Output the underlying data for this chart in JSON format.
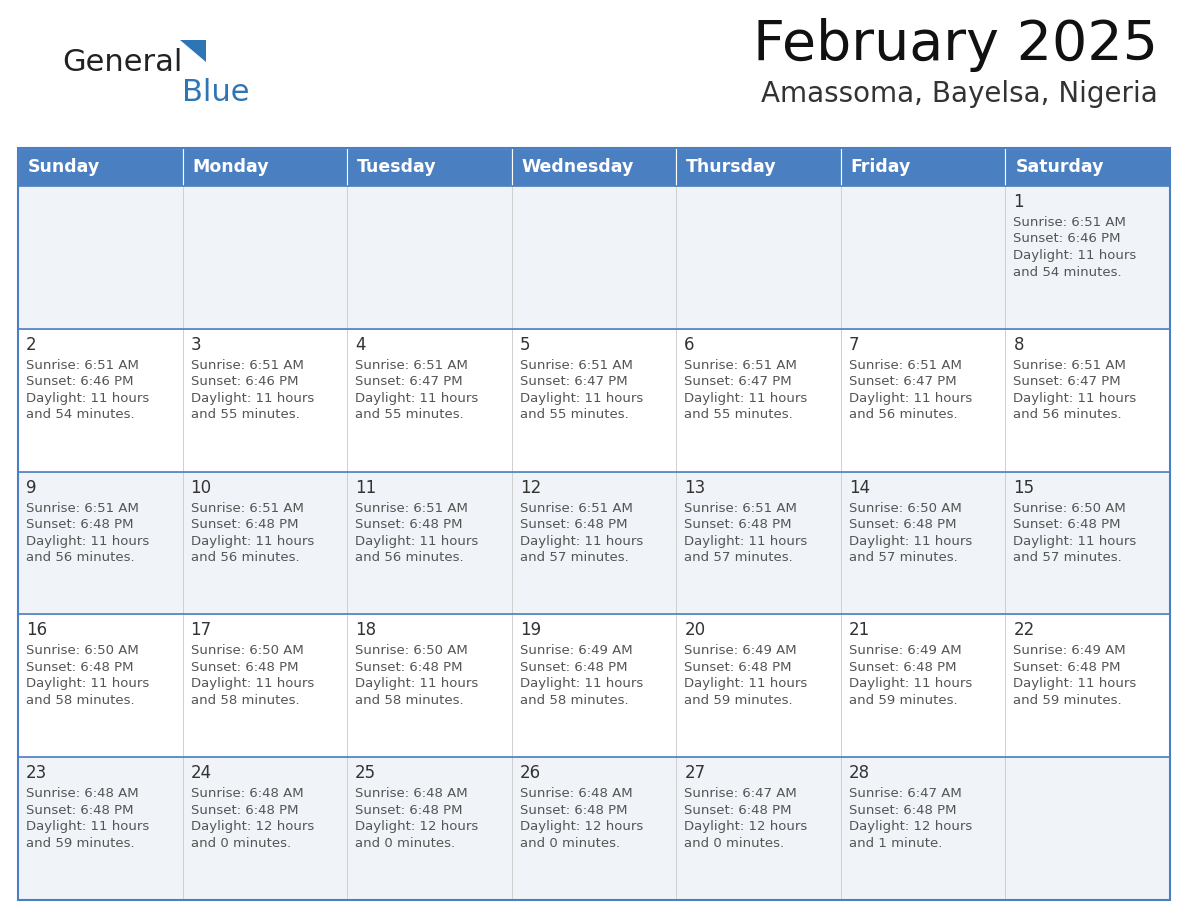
{
  "title": "February 2025",
  "subtitle": "Amassoma, Bayelsa, Nigeria",
  "days_of_week": [
    "Sunday",
    "Monday",
    "Tuesday",
    "Wednesday",
    "Thursday",
    "Friday",
    "Saturday"
  ],
  "header_bg": "#4a7fc1",
  "header_text": "#FFFFFF",
  "row_bg_light": "#f0f4f8",
  "row_bg_white": "#FFFFFF",
  "border_color": "#4a7fc1",
  "inner_border_color": "#cccccc",
  "day_number_color": "#333333",
  "text_color": "#555555",
  "calendar": [
    [
      {
        "day": null,
        "sunrise": null,
        "sunset": null,
        "daylight_line1": null,
        "daylight_line2": null
      },
      {
        "day": null,
        "sunrise": null,
        "sunset": null,
        "daylight_line1": null,
        "daylight_line2": null
      },
      {
        "day": null,
        "sunrise": null,
        "sunset": null,
        "daylight_line1": null,
        "daylight_line2": null
      },
      {
        "day": null,
        "sunrise": null,
        "sunset": null,
        "daylight_line1": null,
        "daylight_line2": null
      },
      {
        "day": null,
        "sunrise": null,
        "sunset": null,
        "daylight_line1": null,
        "daylight_line2": null
      },
      {
        "day": null,
        "sunrise": null,
        "sunset": null,
        "daylight_line1": null,
        "daylight_line2": null
      },
      {
        "day": "1",
        "sunrise": "Sunrise: 6:51 AM",
        "sunset": "Sunset: 6:46 PM",
        "daylight_line1": "Daylight: 11 hours",
        "daylight_line2": "and 54 minutes."
      }
    ],
    [
      {
        "day": "2",
        "sunrise": "Sunrise: 6:51 AM",
        "sunset": "Sunset: 6:46 PM",
        "daylight_line1": "Daylight: 11 hours",
        "daylight_line2": "and 54 minutes."
      },
      {
        "day": "3",
        "sunrise": "Sunrise: 6:51 AM",
        "sunset": "Sunset: 6:46 PM",
        "daylight_line1": "Daylight: 11 hours",
        "daylight_line2": "and 55 minutes."
      },
      {
        "day": "4",
        "sunrise": "Sunrise: 6:51 AM",
        "sunset": "Sunset: 6:47 PM",
        "daylight_line1": "Daylight: 11 hours",
        "daylight_line2": "and 55 minutes."
      },
      {
        "day": "5",
        "sunrise": "Sunrise: 6:51 AM",
        "sunset": "Sunset: 6:47 PM",
        "daylight_line1": "Daylight: 11 hours",
        "daylight_line2": "and 55 minutes."
      },
      {
        "day": "6",
        "sunrise": "Sunrise: 6:51 AM",
        "sunset": "Sunset: 6:47 PM",
        "daylight_line1": "Daylight: 11 hours",
        "daylight_line2": "and 55 minutes."
      },
      {
        "day": "7",
        "sunrise": "Sunrise: 6:51 AM",
        "sunset": "Sunset: 6:47 PM",
        "daylight_line1": "Daylight: 11 hours",
        "daylight_line2": "and 56 minutes."
      },
      {
        "day": "8",
        "sunrise": "Sunrise: 6:51 AM",
        "sunset": "Sunset: 6:47 PM",
        "daylight_line1": "Daylight: 11 hours",
        "daylight_line2": "and 56 minutes."
      }
    ],
    [
      {
        "day": "9",
        "sunrise": "Sunrise: 6:51 AM",
        "sunset": "Sunset: 6:48 PM",
        "daylight_line1": "Daylight: 11 hours",
        "daylight_line2": "and 56 minutes."
      },
      {
        "day": "10",
        "sunrise": "Sunrise: 6:51 AM",
        "sunset": "Sunset: 6:48 PM",
        "daylight_line1": "Daylight: 11 hours",
        "daylight_line2": "and 56 minutes."
      },
      {
        "day": "11",
        "sunrise": "Sunrise: 6:51 AM",
        "sunset": "Sunset: 6:48 PM",
        "daylight_line1": "Daylight: 11 hours",
        "daylight_line2": "and 56 minutes."
      },
      {
        "day": "12",
        "sunrise": "Sunrise: 6:51 AM",
        "sunset": "Sunset: 6:48 PM",
        "daylight_line1": "Daylight: 11 hours",
        "daylight_line2": "and 57 minutes."
      },
      {
        "day": "13",
        "sunrise": "Sunrise: 6:51 AM",
        "sunset": "Sunset: 6:48 PM",
        "daylight_line1": "Daylight: 11 hours",
        "daylight_line2": "and 57 minutes."
      },
      {
        "day": "14",
        "sunrise": "Sunrise: 6:50 AM",
        "sunset": "Sunset: 6:48 PM",
        "daylight_line1": "Daylight: 11 hours",
        "daylight_line2": "and 57 minutes."
      },
      {
        "day": "15",
        "sunrise": "Sunrise: 6:50 AM",
        "sunset": "Sunset: 6:48 PM",
        "daylight_line1": "Daylight: 11 hours",
        "daylight_line2": "and 57 minutes."
      }
    ],
    [
      {
        "day": "16",
        "sunrise": "Sunrise: 6:50 AM",
        "sunset": "Sunset: 6:48 PM",
        "daylight_line1": "Daylight: 11 hours",
        "daylight_line2": "and 58 minutes."
      },
      {
        "day": "17",
        "sunrise": "Sunrise: 6:50 AM",
        "sunset": "Sunset: 6:48 PM",
        "daylight_line1": "Daylight: 11 hours",
        "daylight_line2": "and 58 minutes."
      },
      {
        "day": "18",
        "sunrise": "Sunrise: 6:50 AM",
        "sunset": "Sunset: 6:48 PM",
        "daylight_line1": "Daylight: 11 hours",
        "daylight_line2": "and 58 minutes."
      },
      {
        "day": "19",
        "sunrise": "Sunrise: 6:49 AM",
        "sunset": "Sunset: 6:48 PM",
        "daylight_line1": "Daylight: 11 hours",
        "daylight_line2": "and 58 minutes."
      },
      {
        "day": "20",
        "sunrise": "Sunrise: 6:49 AM",
        "sunset": "Sunset: 6:48 PM",
        "daylight_line1": "Daylight: 11 hours",
        "daylight_line2": "and 59 minutes."
      },
      {
        "day": "21",
        "sunrise": "Sunrise: 6:49 AM",
        "sunset": "Sunset: 6:48 PM",
        "daylight_line1": "Daylight: 11 hours",
        "daylight_line2": "and 59 minutes."
      },
      {
        "day": "22",
        "sunrise": "Sunrise: 6:49 AM",
        "sunset": "Sunset: 6:48 PM",
        "daylight_line1": "Daylight: 11 hours",
        "daylight_line2": "and 59 minutes."
      }
    ],
    [
      {
        "day": "23",
        "sunrise": "Sunrise: 6:48 AM",
        "sunset": "Sunset: 6:48 PM",
        "daylight_line1": "Daylight: 11 hours",
        "daylight_line2": "and 59 minutes."
      },
      {
        "day": "24",
        "sunrise": "Sunrise: 6:48 AM",
        "sunset": "Sunset: 6:48 PM",
        "daylight_line1": "Daylight: 12 hours",
        "daylight_line2": "and 0 minutes."
      },
      {
        "day": "25",
        "sunrise": "Sunrise: 6:48 AM",
        "sunset": "Sunset: 6:48 PM",
        "daylight_line1": "Daylight: 12 hours",
        "daylight_line2": "and 0 minutes."
      },
      {
        "day": "26",
        "sunrise": "Sunrise: 6:48 AM",
        "sunset": "Sunset: 6:48 PM",
        "daylight_line1": "Daylight: 12 hours",
        "daylight_line2": "and 0 minutes."
      },
      {
        "day": "27",
        "sunrise": "Sunrise: 6:47 AM",
        "sunset": "Sunset: 6:48 PM",
        "daylight_line1": "Daylight: 12 hours",
        "daylight_line2": "and 0 minutes."
      },
      {
        "day": "28",
        "sunrise": "Sunrise: 6:47 AM",
        "sunset": "Sunset: 6:48 PM",
        "daylight_line1": "Daylight: 12 hours",
        "daylight_line2": "and 1 minute."
      },
      {
        "day": null,
        "sunrise": null,
        "sunset": null,
        "daylight_line1": null,
        "daylight_line2": null
      }
    ]
  ],
  "logo_general_color": "#222222",
  "logo_blue_color": "#2E75B6",
  "logo_triangle_color": "#2E75B6"
}
